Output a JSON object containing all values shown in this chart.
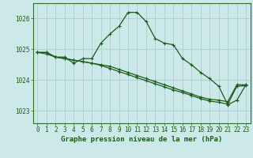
{
  "title": "Graphe pression niveau de la mer (hPa)",
  "background_color": "#cce8e8",
  "grid_color": "#aacfcf",
  "line_color": "#1a5c1a",
  "ylim": [
    1022.6,
    1026.5
  ],
  "xlim": [
    -0.5,
    23.5
  ],
  "yticks": [
    1023,
    1024,
    1025,
    1026
  ],
  "xticks": [
    0,
    1,
    2,
    3,
    4,
    5,
    6,
    7,
    8,
    9,
    10,
    11,
    12,
    13,
    14,
    15,
    16,
    17,
    18,
    19,
    20,
    21,
    22,
    23
  ],
  "series1": [
    1024.9,
    1024.9,
    1024.75,
    1024.7,
    1024.65,
    1024.6,
    1024.55,
    1024.5,
    1024.45,
    1024.35,
    1024.25,
    1024.15,
    1024.05,
    1023.95,
    1023.85,
    1023.75,
    1023.65,
    1023.55,
    1023.45,
    1023.38,
    1023.35,
    1023.3,
    1023.85,
    1023.85
  ],
  "series2": [
    1024.9,
    1024.9,
    1024.75,
    1024.7,
    1024.65,
    1024.6,
    1024.55,
    1024.48,
    1024.38,
    1024.28,
    1024.18,
    1024.08,
    1023.98,
    1023.88,
    1023.78,
    1023.68,
    1023.6,
    1023.5,
    1023.4,
    1023.32,
    1023.28,
    1023.22,
    1023.8,
    1023.82
  ],
  "series3": [
    1024.9,
    1024.85,
    1024.75,
    1024.75,
    1024.55,
    1024.7,
    1024.7,
    1025.2,
    1025.5,
    1025.75,
    1026.2,
    1026.2,
    1025.9,
    1025.35,
    1025.2,
    1025.15,
    1024.7,
    1024.5,
    1024.25,
    1024.05,
    1023.8,
    1023.2,
    1023.35,
    1023.85
  ],
  "marker_size": 3.5,
  "line_width": 0.9,
  "tick_fontsize": 5.5,
  "title_fontsize": 6.5,
  "border_color": "#2d6e2d"
}
